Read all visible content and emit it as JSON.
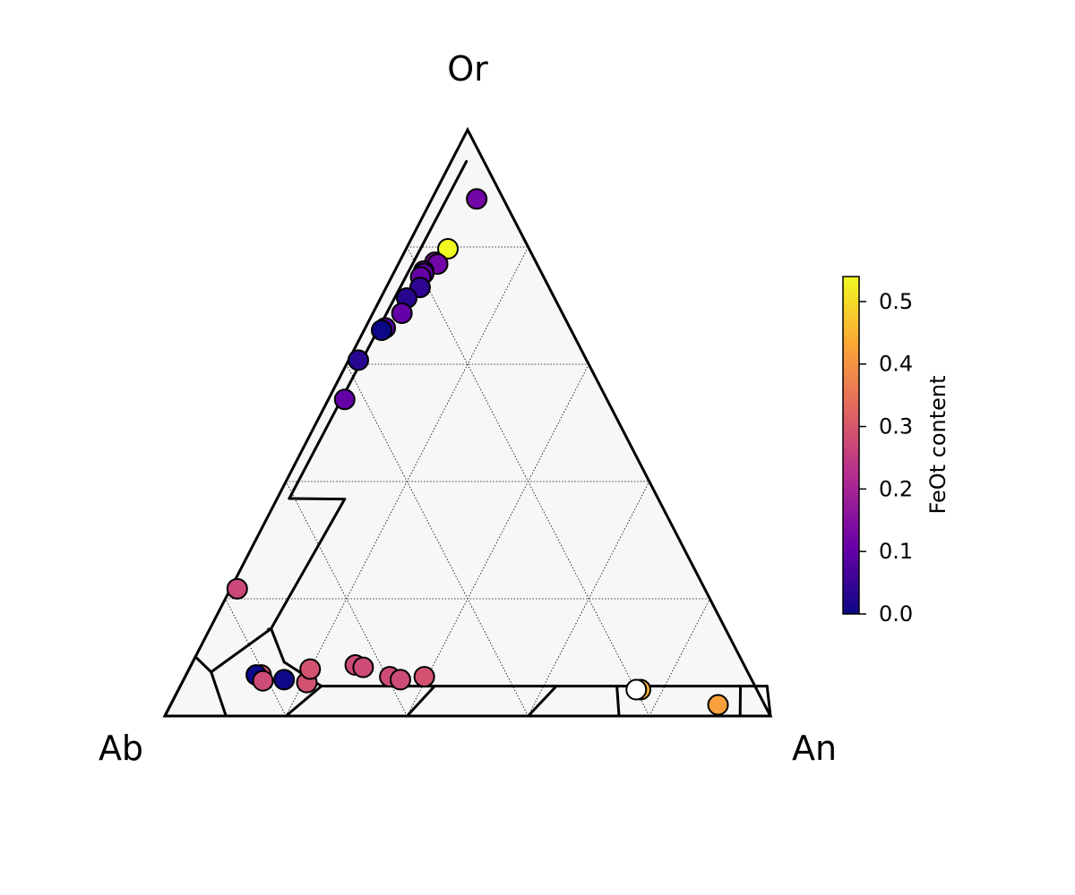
{
  "chart_data": {
    "type": "scatter",
    "title": "",
    "vertices": {
      "top": "Or",
      "left": "Ab",
      "right": "An"
    },
    "colorbar": {
      "label": "FeOt content",
      "range": [
        0,
        0.54
      ],
      "ticks": [
        0.0,
        0.1,
        0.2,
        0.3,
        0.4,
        0.5
      ],
      "tick_labels": [
        "0.0",
        "0.1",
        "0.2",
        "0.3",
        "0.4",
        "0.5"
      ],
      "colormap": "plasma",
      "colormap_stops": [
        "#0d0887",
        "#6a00a8",
        "#b12a90",
        "#e16462",
        "#fca636",
        "#f0f921"
      ]
    },
    "grid": true,
    "grid_step": 0.2,
    "series": [
      {
        "points": [
          {
            "or": 0.882,
            "an": 0.074,
            "feot": 0.12
          },
          {
            "or": 0.797,
            "an": 0.069,
            "feot": 0.54
          },
          {
            "or": 0.774,
            "an": 0.059,
            "feot": 0.14
          },
          {
            "or": 0.771,
            "an": 0.065,
            "feot": 0.12
          },
          {
            "or": 0.759,
            "an": 0.048,
            "feot": 0.12
          },
          {
            "or": 0.755,
            "an": 0.05,
            "feot": 0.09
          },
          {
            "or": 0.749,
            "an": 0.048,
            "feot": 0.1
          },
          {
            "or": 0.731,
            "an": 0.056,
            "feot": 0.04
          },
          {
            "or": 0.713,
            "an": 0.043,
            "feot": 0.03
          },
          {
            "or": 0.687,
            "an": 0.048,
            "feot": 0.1
          },
          {
            "or": 0.662,
            "an": 0.033,
            "feot": 0.08
          },
          {
            "or": 0.658,
            "an": 0.029,
            "feot": 0.0
          },
          {
            "or": 0.607,
            "an": 0.016,
            "feot": 0.03
          },
          {
            "or": 0.54,
            "an": 0.027,
            "feot": 0.1
          },
          {
            "or": 0.217,
            "an": 0.011,
            "feot": 0.27
          },
          {
            "or": 0.07,
            "an": 0.124,
            "feot": 0.29
          },
          {
            "or": 0.07,
            "an": 0.116,
            "feot": 0.0
          },
          {
            "or": 0.062,
            "an": 0.166,
            "feot": 0.0
          },
          {
            "or": 0.057,
            "an": 0.206,
            "feot": 0.29
          },
          {
            "or": 0.06,
            "an": 0.132,
            "feot": 0.28
          },
          {
            "or": 0.08,
            "an": 0.2,
            "feot": 0.29
          },
          {
            "or": 0.087,
            "an": 0.271,
            "feot": 0.28
          },
          {
            "or": 0.083,
            "an": 0.286,
            "feot": 0.28
          },
          {
            "or": 0.067,
            "an": 0.338,
            "feot": 0.28
          },
          {
            "or": 0.062,
            "an": 0.358,
            "feot": 0.28
          },
          {
            "or": 0.067,
            "an": 0.395,
            "feot": 0.29
          },
          {
            "or": 0.045,
            "an": 0.763,
            "feot": 0.45
          },
          {
            "or": 0.045,
            "an": 0.756,
            "feot": null
          },
          {
            "or": 0.019,
            "an": 0.904,
            "feot": 0.42
          }
        ]
      }
    ],
    "field_boundaries": [
      [
        [
          0,
          0.1
        ],
        [
          0,
          0.8
        ]
      ],
      [
        [
          0.05,
          0
        ],
        [
          0.95,
          0
        ]
      ],
      [
        [
          0.376,
          0.065
        ],
        [
          0.376,
          0.0
        ]
      ],
      [
        [
          0.376,
          0.065
        ],
        [
          0.353,
          0.099
        ]
      ],
      [
        [
          0.105,
          0.115
        ],
        [
          0.353,
          0.099
        ]
      ],
      [
        [
          0.105,
          0.115
        ],
        [
          0.05,
          0.21
        ]
      ],
      [
        [
          0.05,
          0.21
        ],
        [
          0.05,
          0.43
        ]
      ],
      [
        [
          0.05,
          0.21
        ],
        [
          0.103,
          0.181
        ]
      ],
      [
        [
          0.103,
          0.181
        ],
        [
          0.05,
          0.3
        ]
      ],
      [
        [
          0,
          0.103
        ],
        [
          0.0,
          0.153
        ]
      ],
      [
        [
          0.05,
          0.1
        ],
        [
          0.0,
          0.2
        ]
      ],
      [
        [
          0.05,
          0.3
        ],
        [
          0.0,
          0.4
        ]
      ],
      [
        [
          0.05,
          0.5
        ],
        [
          0.0,
          0.6
        ]
      ],
      [
        [
          0.05,
          0.7
        ],
        [
          0.0,
          0.8
        ]
      ],
      [
        [
          0.05,
          0.9
        ],
        [
          0.0,
          0.95
        ]
      ]
    ]
  }
}
